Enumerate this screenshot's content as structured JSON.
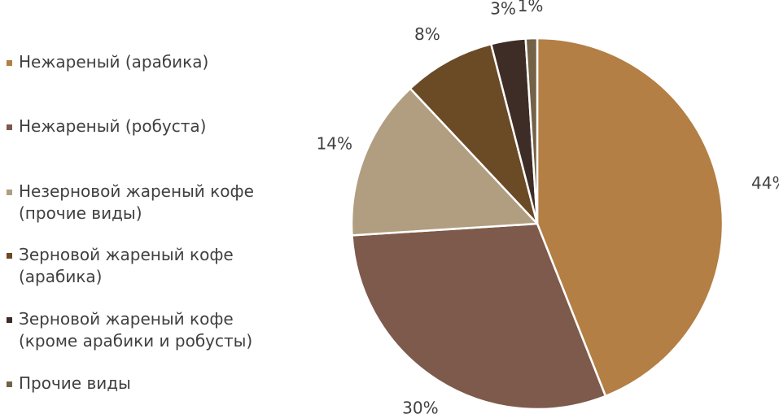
{
  "chart_data": {
    "type": "pie",
    "title": "",
    "legend_position": "left",
    "slices": [
      {
        "label": "Нежареный (арабика)",
        "value": 44,
        "value_label": "44%",
        "color": "#b37f45"
      },
      {
        "label": "Нежареный (робуста)",
        "value": 30,
        "value_label": "30%",
        "color": "#7d5a4c"
      },
      {
        "label": "Незерновой жареный кофе\n(прочие виды)",
        "value": 14,
        "value_label": "14%",
        "color": "#b19e80"
      },
      {
        "label": "Зерновой жареный кофе\n(арабика)",
        "value": 8,
        "value_label": "8%",
        "color": "#6b4a26"
      },
      {
        "label": "Зерновой жареный кофе\n(кроме арабики и робусты)",
        "value": 3,
        "value_label": "3%",
        "color": "#3e2c26"
      },
      {
        "label": "Прочие виды",
        "value": 1,
        "value_label": "1%",
        "color": "#736246"
      }
    ]
  }
}
